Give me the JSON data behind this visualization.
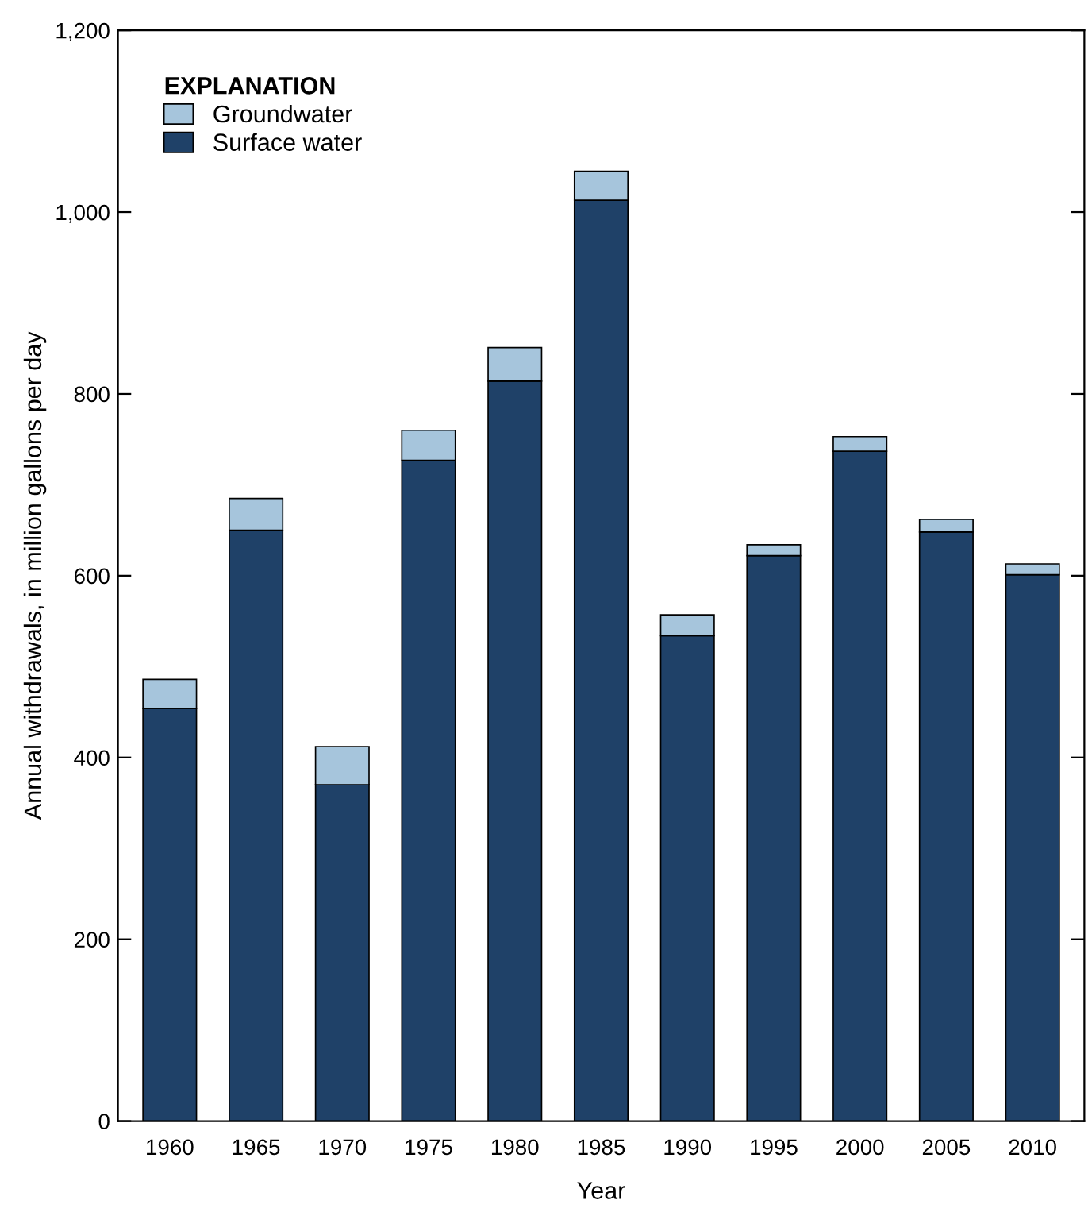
{
  "chart_data": {
    "type": "bar",
    "stacked": true,
    "xlabel": "Year",
    "ylabel": "Annual withdrawals, in million gallons per day",
    "legend_title": "EXPLANATION",
    "legend": "top left",
    "grid": false,
    "categories": [
      "1960",
      "1965",
      "1970",
      "1975",
      "1980",
      "1985",
      "1990",
      "1995",
      "2000",
      "2005",
      "2010"
    ],
    "series": [
      {
        "name": "Surface water",
        "color": "#1f4168",
        "values": [
          454,
          650,
          370,
          727,
          814,
          1013,
          534,
          622,
          737,
          648,
          601
        ]
      },
      {
        "name": "Groundwater",
        "color": "#a6c5dc",
        "values": [
          32,
          35,
          42,
          33,
          37,
          32,
          23,
          12,
          16,
          14,
          12
        ]
      }
    ],
    "ylim": [
      0,
      1200
    ],
    "yticks": [
      0,
      200,
      400,
      600,
      800,
      {
        "value": 1000,
        "label": "1,000"
      },
      {
        "value": 1200,
        "label": "1,200"
      }
    ]
  }
}
